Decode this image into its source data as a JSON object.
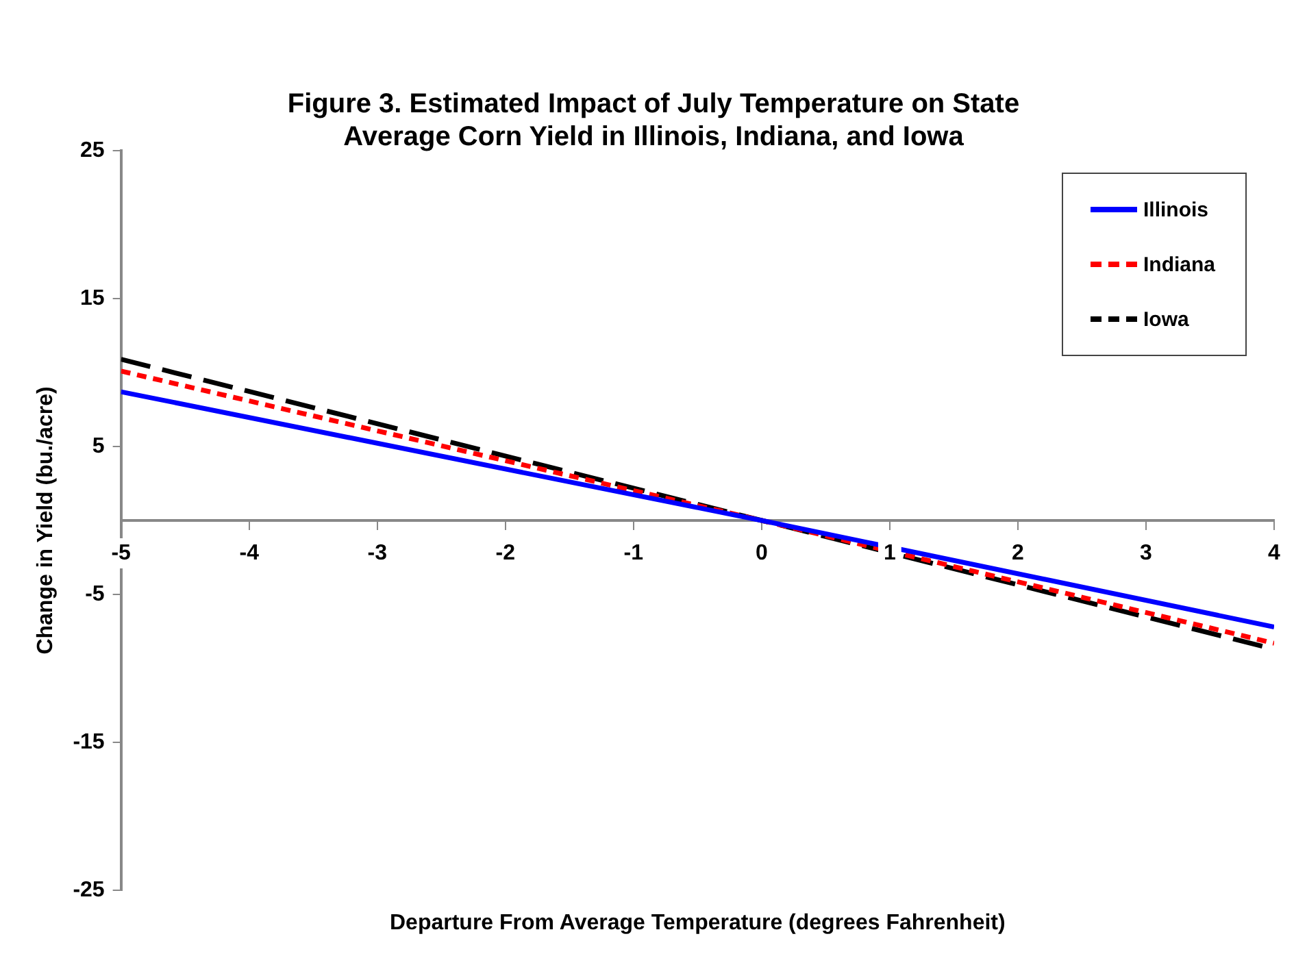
{
  "chart_data": {
    "type": "line",
    "title": "Figure 3.  Estimated Impact of July Temperature on State Average Corn Yield in Illinois, Indiana, and Iowa",
    "xlabel": "Departure From Average Temperature (degrees Fahrenheit)",
    "ylabel": "Change in Yield (bu./acre)",
    "x": [
      -5,
      0,
      4
    ],
    "xlim": [
      -5,
      4
    ],
    "xticks": [
      -5,
      -4,
      -3,
      -2,
      -1,
      0,
      1,
      2,
      3,
      4
    ],
    "ylim": [
      -25,
      25
    ],
    "yticks": [
      -25,
      -15,
      -5,
      5,
      15,
      25
    ],
    "grid": false,
    "legend": "top right",
    "marker": "none",
    "series": [
      {
        "name": "Illinois",
        "color": "#0000ff",
        "line_style": "solid",
        "values": [
          8.7,
          0,
          -7.2
        ]
      },
      {
        "name": "Indiana",
        "color": "#ff0000",
        "line_style": "dashed",
        "values": [
          10.1,
          0,
          -8.3
        ]
      },
      {
        "name": "Iowa",
        "color": "#000000",
        "line_style": "dashed",
        "values": [
          10.9,
          0,
          -8.7
        ]
      }
    ]
  }
}
